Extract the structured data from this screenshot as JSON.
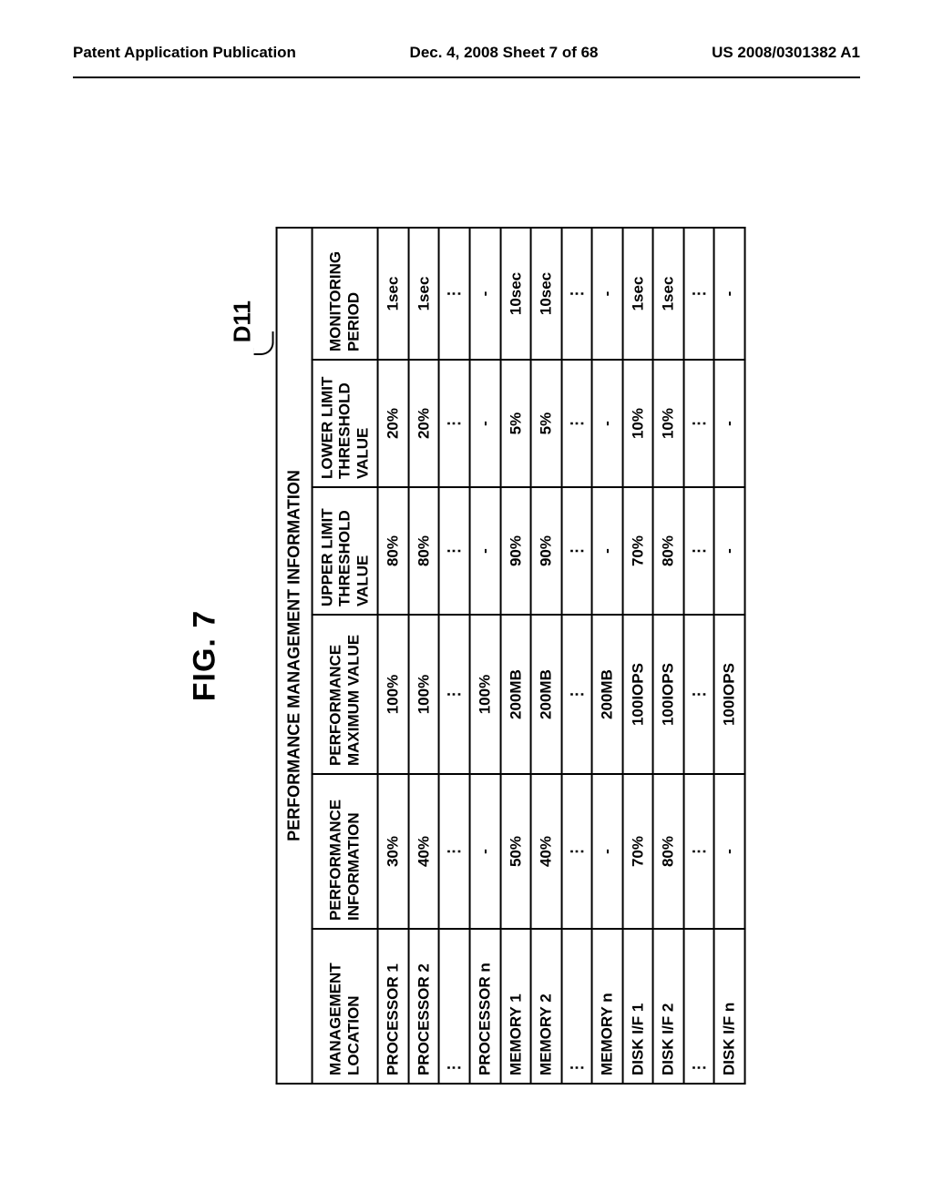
{
  "header": {
    "left": "Patent Application Publication",
    "center": "Dec. 4, 2008  Sheet 7 of 68",
    "right": "US 2008/0301382 A1"
  },
  "figure": {
    "label": "FIG. 7",
    "callout": "D11",
    "table": {
      "title": "PERFORMANCE MANAGEMENT INFORMATION",
      "columns": [
        "MANAGEMENT LOCATION",
        "PERFORMANCE INFORMATION",
        "PERFORMANCE MAXIMUM VALUE",
        "UPPER LIMIT THRESHOLD VALUE",
        "LOWER LIMIT THRESHOLD VALUE",
        "MONITORING PERIOD"
      ],
      "rows": [
        [
          "PROCESSOR 1",
          "30%",
          "100%",
          "80%",
          "20%",
          "1sec"
        ],
        [
          "PROCESSOR 2",
          "40%",
          "100%",
          "80%",
          "20%",
          "1sec"
        ],
        [
          "⋮",
          "⋮",
          "⋮",
          "⋮",
          "⋮",
          "⋮"
        ],
        [
          "PROCESSOR n",
          "-",
          "100%",
          "-",
          "-",
          "-"
        ],
        [
          "MEMORY 1",
          "50%",
          "200MB",
          "90%",
          "5%",
          "10sec"
        ],
        [
          "MEMORY 2",
          "40%",
          "200MB",
          "90%",
          "5%",
          "10sec"
        ],
        [
          "⋮",
          "⋮",
          "⋮",
          "⋮",
          "⋮",
          "⋮"
        ],
        [
          "MEMORY n",
          "-",
          "200MB",
          "-",
          "-",
          "-"
        ],
        [
          "DISK I/F 1",
          "70%",
          "100IOPS",
          "70%",
          "10%",
          "1sec"
        ],
        [
          "DISK I/F 2",
          "80%",
          "100IOPS",
          "80%",
          "10%",
          "1sec"
        ],
        [
          "⋮",
          "⋮",
          "⋮",
          "⋮",
          "⋮",
          "⋮"
        ],
        [
          "DISK I/F n",
          "-",
          "100IOPS",
          "-",
          "-",
          "-"
        ]
      ]
    }
  }
}
